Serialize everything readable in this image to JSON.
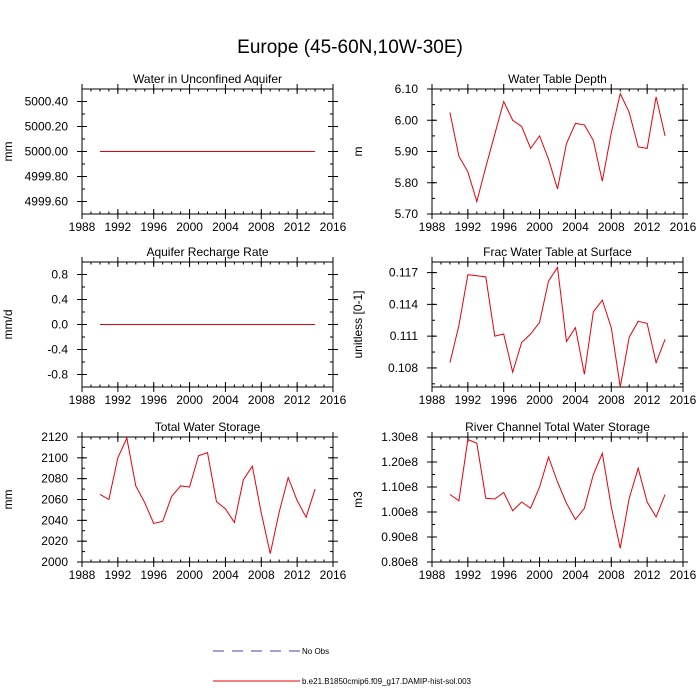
{
  "page": {
    "title": "Europe (45-60N,10W-30E)"
  },
  "legend": {
    "entries": [
      {
        "label": "No Obs",
        "color": "#4b3fa8",
        "style": "dashed"
      },
      {
        "label": "b.e21.B1850cmip6.f09_g17.DAMIP-hist-sol.003",
        "color": "#e8000b",
        "style": "solid"
      }
    ]
  },
  "chart_data": [
    {
      "type": "line",
      "title": "Water in Unconfined Aquifer",
      "ylabel": "mm",
      "xlim": [
        1988,
        2016
      ],
      "ylim": [
        4999.5,
        5000.5
      ],
      "xticks": [
        1988,
        1992,
        1996,
        2000,
        2004,
        2008,
        2012,
        2016
      ],
      "yticks": [
        4999.6,
        4999.8,
        5000.0,
        5000.2,
        5000.4
      ],
      "ytick_labels": [
        "4999.60",
        "4999.80",
        "5000.00",
        "5000.20",
        "5000.40"
      ],
      "series": [
        {
          "color": "#e8000b",
          "x": [
            1990,
            1991,
            1992,
            1993,
            1994,
            1995,
            1996,
            1997,
            1998,
            1999,
            2000,
            2001,
            2002,
            2003,
            2004,
            2005,
            2006,
            2007,
            2008,
            2009,
            2010,
            2011,
            2012,
            2013,
            2014
          ],
          "y": [
            5000,
            5000,
            5000,
            5000,
            5000,
            5000,
            5000,
            5000,
            5000,
            5000,
            5000,
            5000,
            5000,
            5000,
            5000,
            5000,
            5000,
            5000,
            5000,
            5000,
            5000,
            5000,
            5000,
            5000,
            5000
          ]
        }
      ]
    },
    {
      "type": "line",
      "title": "Water Table Depth",
      "ylabel": "m",
      "xlim": [
        1988,
        2016
      ],
      "ylim": [
        5.7,
        6.1
      ],
      "xticks": [
        1988,
        1992,
        1996,
        2000,
        2004,
        2008,
        2012,
        2016
      ],
      "yticks": [
        5.7,
        5.8,
        5.9,
        6.0,
        6.1
      ],
      "ytick_labels": [
        "5.70",
        "5.80",
        "5.90",
        "6.00",
        "6.10"
      ],
      "series": [
        {
          "color": "#e8000b",
          "x": [
            1990,
            1991,
            1992,
            1993,
            1994,
            1995,
            1996,
            1997,
            1998,
            1999,
            2000,
            2001,
            2002,
            2003,
            2004,
            2005,
            2006,
            2007,
            2008,
            2009,
            2010,
            2011,
            2012,
            2013,
            2014
          ],
          "y": [
            6.025,
            5.885,
            5.835,
            5.74,
            5.85,
            5.955,
            6.06,
            6.0,
            5.98,
            5.91,
            5.95,
            5.875,
            5.78,
            5.925,
            5.99,
            5.985,
            5.935,
            5.805,
            5.96,
            6.085,
            6.025,
            5.915,
            5.91,
            6.075,
            5.95
          ]
        }
      ]
    },
    {
      "type": "line",
      "title": "Aquifer Recharge Rate",
      "ylabel": "mm/d",
      "xlim": [
        1988,
        2016
      ],
      "ylim": [
        -1.0,
        1.0
      ],
      "xticks": [
        1988,
        1992,
        1996,
        2000,
        2004,
        2008,
        2012,
        2016
      ],
      "yticks": [
        -0.8,
        -0.4,
        0.0,
        0.4,
        0.8
      ],
      "ytick_labels": [
        "-0.8",
        "-0.4",
        "0.0",
        "0.4",
        "0.8"
      ],
      "series": [
        {
          "color": "#e8000b",
          "x": [
            1990,
            1991,
            1992,
            1993,
            1994,
            1995,
            1996,
            1997,
            1998,
            1999,
            2000,
            2001,
            2002,
            2003,
            2004,
            2005,
            2006,
            2007,
            2008,
            2009,
            2010,
            2011,
            2012,
            2013,
            2014
          ],
          "y": [
            0,
            0,
            0,
            0,
            0,
            0,
            0,
            0,
            0,
            0,
            0,
            0,
            0,
            0,
            0,
            0,
            0,
            0,
            0,
            0,
            0,
            0,
            0,
            0,
            0
          ]
        }
      ]
    },
    {
      "type": "line",
      "title": "Frac Water Table at Surface",
      "ylabel": "unitless [0-1]",
      "xlim": [
        1988,
        2016
      ],
      "ylim": [
        0.1062,
        0.118
      ],
      "xticks": [
        1988,
        1992,
        1996,
        2000,
        2004,
        2008,
        2012,
        2016
      ],
      "yticks": [
        0.108,
        0.111,
        0.114,
        0.117
      ],
      "ytick_labels": [
        "0.108",
        "0.111",
        "0.114",
        "0.117"
      ],
      "series": [
        {
          "color": "#e8000b",
          "x": [
            1990,
            1991,
            1992,
            1993,
            1994,
            1995,
            1996,
            1997,
            1998,
            1999,
            2000,
            2001,
            2002,
            2003,
            2004,
            2005,
            2006,
            2007,
            2008,
            2009,
            2010,
            2011,
            2012,
            2013,
            2014
          ],
          "y": [
            0.1085,
            0.112,
            0.1168,
            0.1167,
            0.1166,
            0.111,
            0.1112,
            0.1076,
            0.1104,
            0.1112,
            0.1123,
            0.1162,
            0.1175,
            0.1105,
            0.1118,
            0.1074,
            0.1133,
            0.1144,
            0.1118,
            0.1062,
            0.1109,
            0.1124,
            0.1122,
            0.1085,
            0.1107
          ]
        }
      ]
    },
    {
      "type": "line",
      "title": "Total Water Storage",
      "ylabel": "mm",
      "xlim": [
        1988,
        2016
      ],
      "ylim": [
        2000,
        2120
      ],
      "xticks": [
        1988,
        1992,
        1996,
        2000,
        2004,
        2008,
        2012,
        2016
      ],
      "yticks": [
        2000,
        2020,
        2040,
        2060,
        2080,
        2100,
        2120
      ],
      "ytick_labels": [
        "2000",
        "2020",
        "2040",
        "2060",
        "2080",
        "2100",
        "2120"
      ],
      "series": [
        {
          "color": "#e8000b",
          "x": [
            1990,
            1991,
            1992,
            1993,
            1994,
            1995,
            1996,
            1997,
            1998,
            1999,
            2000,
            2001,
            2002,
            2003,
            2004,
            2005,
            2006,
            2007,
            2008,
            2009,
            2010,
            2011,
            2012,
            2013,
            2014
          ],
          "y": [
            2065,
            2060,
            2100,
            2119,
            2073,
            2057,
            2037,
            2039,
            2063,
            2073,
            2072,
            2102,
            2105,
            2058,
            2051,
            2038,
            2079,
            2092,
            2047,
            2008,
            2048,
            2081,
            2059,
            2043,
            2070
          ]
        }
      ]
    },
    {
      "type": "line",
      "title": "River Channel Total Water Storage",
      "ylabel": "m3",
      "xlim": [
        1988,
        2016
      ],
      "ylim": [
        80000000,
        130000000
      ],
      "xticks": [
        1988,
        1992,
        1996,
        2000,
        2004,
        2008,
        2012,
        2016
      ],
      "yticks": [
        80000000,
        90000000,
        100000000,
        110000000,
        120000000,
        130000000
      ],
      "ytick_labels": [
        "0.80e8",
        "0.90e8",
        "1.00e8",
        "1.10e8",
        "1.20e8",
        "1.30e8"
      ],
      "series": [
        {
          "color": "#e8000b",
          "x": [
            1990,
            1991,
            1992,
            1993,
            1994,
            1995,
            1996,
            1997,
            1998,
            1999,
            2000,
            2001,
            2002,
            2003,
            2004,
            2005,
            2006,
            2007,
            2008,
            2009,
            2010,
            2011,
            2012,
            2013,
            2014
          ],
          "y": [
            107000000,
            104500000,
            129000000,
            127500000,
            105500000,
            105200000,
            107800000,
            100500000,
            104000000,
            101500000,
            110000000,
            122000000,
            112000000,
            103500000,
            97000000,
            101500000,
            115000000,
            123500000,
            102000000,
            85500000,
            105500000,
            117500000,
            104000000,
            98000000,
            107000000
          ]
        }
      ]
    }
  ]
}
